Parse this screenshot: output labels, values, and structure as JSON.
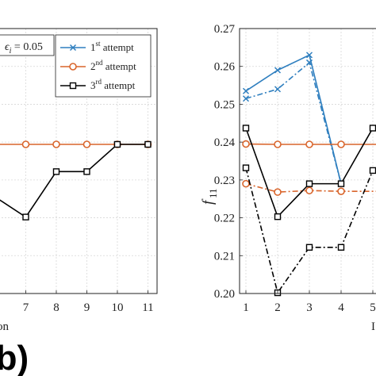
{
  "chart_data": [
    {
      "type": "line",
      "panel": "left (cropped)",
      "xlabel_visible": "on",
      "x_ticks": [
        7,
        8,
        9,
        10,
        11
      ],
      "xlim": [
        6.0,
        11.3
      ],
      "y_range_visible": [
        0.2,
        0.27
      ],
      "grid": true,
      "annotation": "ϵ_i = 0.05",
      "annotation_parts": {
        "symbol": "ϵ",
        "subscript": "i",
        "rest": " = 0.05"
      },
      "legend_position": "top-right",
      "series": [
        {
          "name": "1st attempt",
          "name_main": "1",
          "name_sup": "st",
          "name_rest": " attempt",
          "color": "#2f7fbf",
          "marker": "x",
          "linestyle": "solid",
          "x": [],
          "y": []
        },
        {
          "name": "2nd attempt",
          "name_main": "2",
          "name_sup": "nd",
          "name_rest": " attempt",
          "color": "#d9652c",
          "marker": "o",
          "linestyle": "solid",
          "x": [
            6,
            7,
            8,
            9,
            10,
            11
          ],
          "y": [
            0.2394,
            0.2394,
            0.2394,
            0.2394,
            0.2394,
            0.2394
          ]
        },
        {
          "name": "3rd attempt",
          "name_main": "3",
          "name_sup": "rd",
          "name_rest": " attempt",
          "color": "#000000",
          "marker": "s",
          "linestyle": "solid",
          "x": [
            6,
            7,
            8,
            9,
            10,
            11
          ],
          "y": [
            0.2255,
            0.2202,
            0.2322,
            0.2322,
            0.2394,
            0.2394
          ]
        }
      ]
    },
    {
      "type": "line",
      "panel": "right (cropped)",
      "ylabel": "f",
      "ylabel_sub": "11",
      "xlabel_visible": "I",
      "x_ticks": [
        1,
        2,
        3,
        4,
        5
      ],
      "y_ticks": [
        0.2,
        0.21,
        0.22,
        0.23,
        0.24,
        0.25,
        0.26,
        0.27
      ],
      "xlim": [
        0.8,
        5.5
      ],
      "ylim": [
        0.2,
        0.27
      ],
      "grid": true,
      "series": [
        {
          "name": "",
          "color": "#2f7fbf",
          "marker": "x",
          "linestyle": "solid",
          "x": [
            1,
            2,
            3,
            4
          ],
          "y": [
            0.2535,
            0.259,
            0.263,
            0.229
          ]
        },
        {
          "name": "",
          "color": "#2f7fbf",
          "marker": "x",
          "linestyle": "dashdot",
          "x": [
            1,
            2,
            3,
            4
          ],
          "y": [
            0.2515,
            0.254,
            0.261,
            0.229
          ]
        },
        {
          "name": "",
          "color": "#d9652c",
          "marker": "o",
          "linestyle": "solid",
          "x": [
            1,
            2,
            3,
            4,
            5.5
          ],
          "y": [
            0.2395,
            0.2394,
            0.2394,
            0.2394,
            0.2394
          ]
        },
        {
          "name": "",
          "color": "#d9652c",
          "marker": "o",
          "linestyle": "dashdot",
          "x": [
            1,
            2,
            3,
            4,
            5.5
          ],
          "y": [
            0.229,
            0.2268,
            0.2272,
            0.227,
            0.227
          ]
        },
        {
          "name": "",
          "color": "#000000",
          "marker": "s",
          "linestyle": "solid",
          "x": [
            1,
            2,
            3,
            4,
            5,
            5.5
          ],
          "y": [
            0.2437,
            0.2203,
            0.229,
            0.229,
            0.2437,
            0.2447
          ]
        },
        {
          "name": "",
          "color": "#000000",
          "marker": "s",
          "linestyle": "dashdot",
          "x": [
            1,
            2,
            3,
            4,
            5,
            5.5
          ],
          "y": [
            0.2332,
            0.2002,
            0.2122,
            0.2122,
            0.2325,
            0.236
          ]
        }
      ]
    }
  ],
  "panel_label": "(b)"
}
